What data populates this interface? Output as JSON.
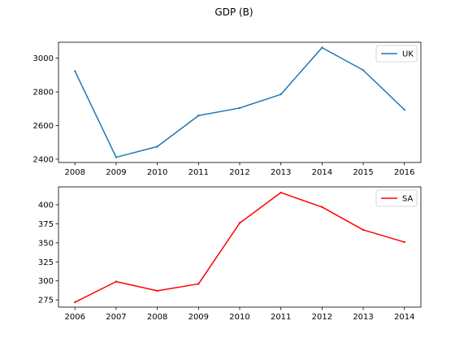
{
  "figure": {
    "title": "GDP (B)"
  },
  "chart_data": [
    {
      "type": "line",
      "title": "GDP (B)",
      "xlabel": "",
      "ylabel": "",
      "x": [
        2008,
        2009,
        2010,
        2011,
        2012,
        2013,
        2014,
        2015,
        2016
      ],
      "series": [
        {
          "name": "UK",
          "color": "#1f77b4",
          "values": [
            2923,
            2411,
            2475,
            2659,
            2704,
            2785,
            3063,
            2929,
            2694
          ]
        }
      ],
      "xlim": [
        2007.6,
        2016.4
      ],
      "ylim": [
        2380,
        3095
      ],
      "yticks": [
        2400,
        2600,
        2800,
        3000
      ],
      "grid": false,
      "legend_position": "upper right"
    },
    {
      "type": "line",
      "title": "",
      "xlabel": "",
      "ylabel": "",
      "x": [
        2006,
        2007,
        2008,
        2009,
        2010,
        2011,
        2012,
        2013,
        2014
      ],
      "series": [
        {
          "name": "SA",
          "color": "#ff0000",
          "values": [
            272,
            299,
            287,
            296,
            376,
            416,
            397,
            367,
            351
          ]
        }
      ],
      "xlim": [
        2005.6,
        2014.4
      ],
      "ylim": [
        265.5,
        423.5
      ],
      "yticks": [
        275,
        300,
        325,
        350,
        375,
        400
      ],
      "grid": false,
      "legend_position": "upper right"
    }
  ]
}
